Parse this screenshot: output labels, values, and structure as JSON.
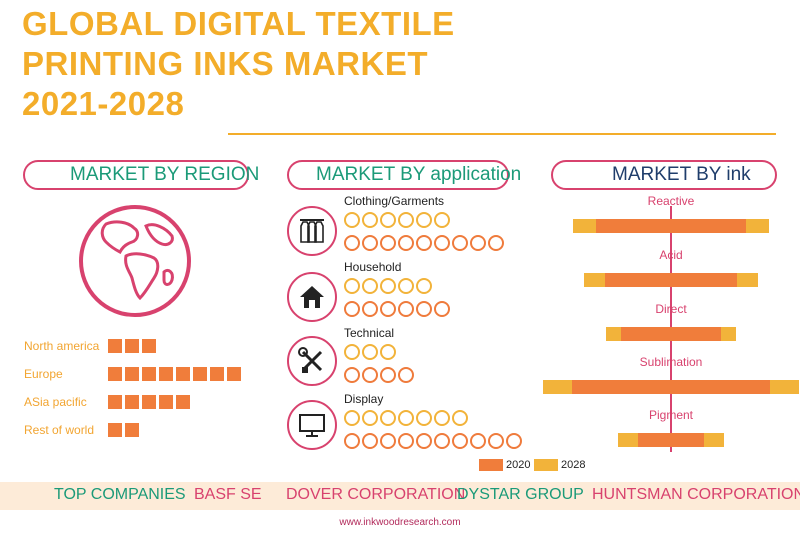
{
  "title": {
    "line1": "GLOBAL DIGITAL TEXTILE",
    "line2": "PRINTING INKS MARKET",
    "line3": "2021-2028"
  },
  "sections": {
    "region": "MARKET BY REGION",
    "application": "MARKET BY application",
    "ink": "MARKET BY ink"
  },
  "regions": [
    {
      "label": "North america",
      "blocks": 3
    },
    {
      "label": "Europe",
      "blocks": 8
    },
    {
      "label": "ASia pacific",
      "blocks": 5
    },
    {
      "label": "Rest of world",
      "blocks": 2
    }
  ],
  "applications": [
    {
      "label": "Clothing/Garments",
      "icon": "garments-icon",
      "y2020": 6,
      "y2028": 9
    },
    {
      "label": "Household",
      "icon": "house-icon",
      "y2020": 5,
      "y2028": 6
    },
    {
      "label": "Technical",
      "icon": "tools-icon",
      "y2020": 3,
      "y2028": 4
    },
    {
      "label": "Display",
      "icon": "monitor-icon",
      "y2020": 7,
      "y2028": 10
    }
  ],
  "legend": {
    "y2020": "2020",
    "y2028": "2028",
    "color_2020": "#f07d3b",
    "color_2028": "#f2b33a"
  },
  "inks": [
    {
      "label": "Reactive",
      "y2020": 75,
      "y2028": 98
    },
    {
      "label": "Acid",
      "y2020": 66,
      "y2028": 87
    },
    {
      "label": "Direct",
      "y2020": 50,
      "y2028": 65
    },
    {
      "label": "Sublimation",
      "y2020": 99,
      "y2028": 128
    },
    {
      "label": "Pigment",
      "y2020": 33,
      "y2028": 53
    }
  ],
  "top_companies": {
    "label": "TOP COMPANIES",
    "names": [
      "BASF SE",
      "DOVER CORPORATION",
      "DYSTAR GROUP",
      "HUNTSMAN CORPORATION"
    ]
  },
  "footer_url": "www.inkwoodresearch.com",
  "colors": {
    "title": "#f3ad2a",
    "accent_pink": "#d8426e",
    "region_text": "#1b9a78",
    "orange": "#f07d3b",
    "yellow": "#f2b33a"
  }
}
